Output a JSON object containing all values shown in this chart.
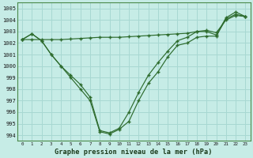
{
  "xlabel": "Graphe pression niveau de la mer (hPa)",
  "ylim": [
    993.5,
    1005.5
  ],
  "xlim": [
    -0.5,
    23.5
  ],
  "yticks": [
    994,
    995,
    996,
    997,
    998,
    999,
    1000,
    1001,
    1002,
    1003,
    1004,
    1005
  ],
  "xticks": [
    0,
    1,
    2,
    3,
    4,
    5,
    6,
    7,
    8,
    9,
    10,
    11,
    12,
    13,
    14,
    15,
    16,
    17,
    18,
    19,
    20,
    21,
    22,
    23
  ],
  "bg_color": "#c6ece6",
  "grid_color": "#a8d8d2",
  "line_color": "#2d6b2d",
  "line_dip1": [
    1002.3,
    1002.8,
    1002.2,
    1001.0,
    1000.0,
    999.0,
    998.0,
    997.0,
    994.3,
    994.1,
    994.5,
    995.2,
    997.0,
    998.5,
    999.5,
    1000.8,
    1001.8,
    1002.0,
    1002.5,
    1002.6,
    1002.6,
    1004.1,
    1004.5,
    1004.3
  ],
  "line_dip2": [
    1002.3,
    1002.8,
    1002.2,
    1001.0,
    1000.0,
    999.2,
    998.4,
    997.3,
    994.4,
    994.2,
    994.6,
    996.0,
    997.7,
    999.2,
    1000.3,
    1001.3,
    1002.2,
    1002.5,
    1003.0,
    1003.0,
    1002.7,
    1004.2,
    1004.7,
    1004.3
  ],
  "line_rising": [
    1002.3,
    1002.3,
    1002.3,
    1002.3,
    1002.3,
    1002.35,
    1002.4,
    1002.45,
    1002.5,
    1002.5,
    1002.5,
    1002.55,
    1002.6,
    1002.65,
    1002.7,
    1002.75,
    1002.8,
    1002.85,
    1003.0,
    1003.1,
    1002.9,
    1004.0,
    1004.4,
    1004.3
  ]
}
